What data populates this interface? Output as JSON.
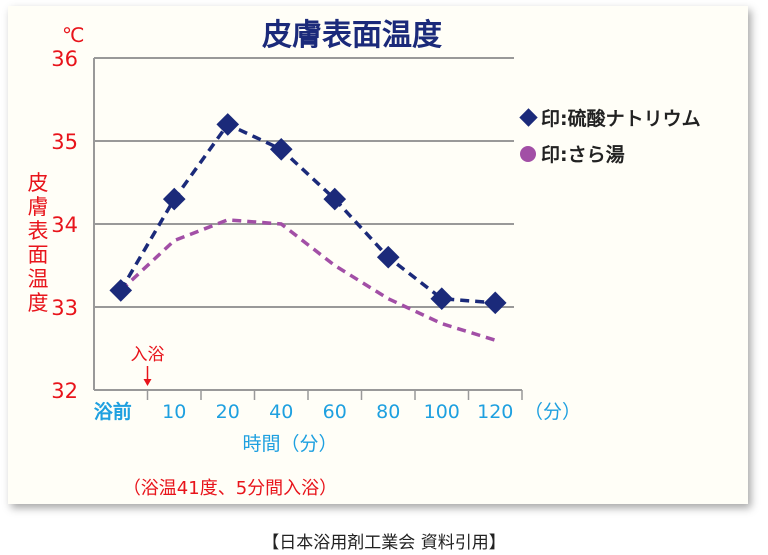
{
  "chart_data": {
    "type": "line",
    "title": "皮膚表面温度",
    "unit_label": "℃",
    "ylabel": "皮膚表面温度",
    "xlabel": "時間（分）",
    "x_unit": "（分）",
    "categories": [
      "浴前",
      "10",
      "20",
      "40",
      "60",
      "80",
      "100",
      "120"
    ],
    "ylim": [
      32,
      36
    ],
    "yticks": [
      32,
      33,
      34,
      35,
      36
    ],
    "grid": true,
    "legend_position": "right",
    "annotation": {
      "text": "入浴",
      "at": "10"
    },
    "note": "（浴温41度、5分間入浴）",
    "series": [
      {
        "name": "印:硫酸ナトリウム",
        "color": "#1b2a7a",
        "marker": "diamond",
        "style": "dashed",
        "values": [
          33.2,
          34.3,
          35.2,
          34.9,
          34.3,
          33.6,
          33.1,
          33.05
        ]
      },
      {
        "name": "印:さら湯",
        "color": "#a24fa6",
        "marker": "circle",
        "style": "dashed",
        "values": [
          33.2,
          33.8,
          34.05,
          34.0,
          33.5,
          33.1,
          32.8,
          32.6
        ]
      }
    ],
    "colors": {
      "title": "#1b2a7a",
      "axis_labels": "#e8141b",
      "x_labels": "#1ea0e0",
      "grid": "#999999"
    }
  },
  "footer": "【日本浴用剤工業会 資料引用】"
}
